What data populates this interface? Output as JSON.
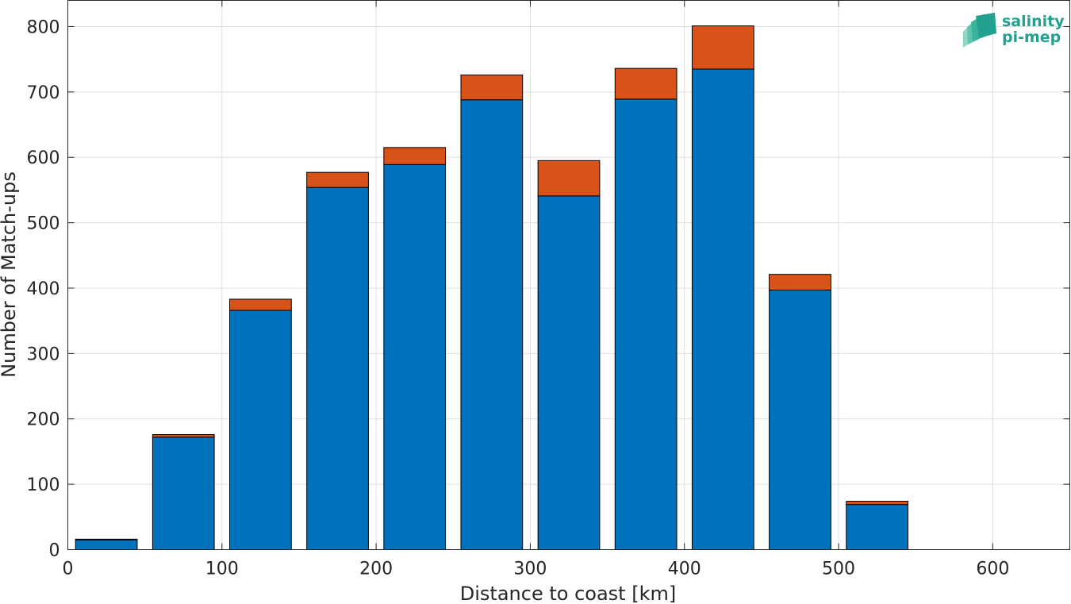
{
  "chart_data": {
    "type": "bar",
    "stacked": true,
    "xlabel": "Distance to coast [km]",
    "ylabel": "Number of Match-ups",
    "xlim": [
      0,
      650
    ],
    "ylim": [
      0,
      840
    ],
    "xticks": [
      0,
      100,
      200,
      300,
      400,
      500,
      600
    ],
    "yticks": [
      0,
      100,
      200,
      300,
      400,
      500,
      600,
      700,
      800
    ],
    "grid": true,
    "bar_width": 40,
    "x": [
      25,
      75,
      125,
      175,
      225,
      275,
      325,
      375,
      425,
      475,
      525
    ],
    "series": [
      {
        "color": "#0072bd",
        "values": [
          15,
          172,
          366,
          554,
          589,
          688,
          541,
          689,
          735,
          397,
          69
        ]
      },
      {
        "color": "#d95319",
        "values": [
          1,
          4,
          17,
          23,
          26,
          38,
          54,
          47,
          66,
          24,
          5
        ]
      }
    ]
  },
  "logo": {
    "line1": "salinity",
    "line2": "pi-mep",
    "color": "#23a190"
  }
}
